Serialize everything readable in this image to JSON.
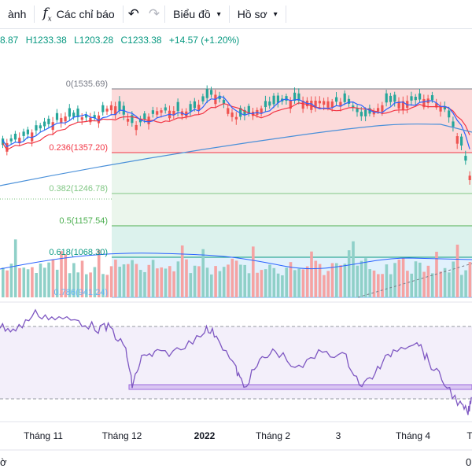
{
  "toolbar": {
    "timeframe_partial": "ành",
    "indicators_label": "Các chỉ báo",
    "chart_label": "Biểu đồ",
    "profile_label": "Hồ sơ"
  },
  "legend": {
    "open_partial": "8.87",
    "high": "H1233.38",
    "low": "L1203.28",
    "close": "C1233.38",
    "change": "+14.57 (+1.20%)"
  },
  "fib": {
    "levels": [
      {
        "label": "0(1535.69)",
        "color": "#787b86"
      },
      {
        "label": "0.236(1357.20)",
        "color": "#f23645"
      },
      {
        "label": "0.382(1246.78)",
        "color": "#81c784"
      },
      {
        "label": "0.5(1157.54)",
        "color": "#4caf50"
      },
      {
        "label": "0.618(1068.30)",
        "color": "#089981"
      },
      {
        "label": "0.786(941.24)",
        "color": "#64b5f6"
      }
    ]
  },
  "xaxis": {
    "labels": [
      "Tháng 11",
      "Tháng 12",
      "2022",
      "Tháng 2",
      "3",
      "Tháng 4",
      "T"
    ],
    "bottom_left_partial": "ờ",
    "bottom_right_partial": "0"
  },
  "colors": {
    "up": "#26a69a",
    "down": "#ef5350",
    "ma_red": "#f23645",
    "ma_blue": "#2962ff",
    "ma_long": "#4a90d9",
    "rsi_line": "#7e57c2",
    "rsi_band": "#f3effa",
    "rsi_zone": "#9c6ade"
  },
  "icons": {
    "fx": "fx-icon",
    "undo": "undo-icon",
    "redo": "redo-icon",
    "chevron": "chevron-down-icon"
  }
}
